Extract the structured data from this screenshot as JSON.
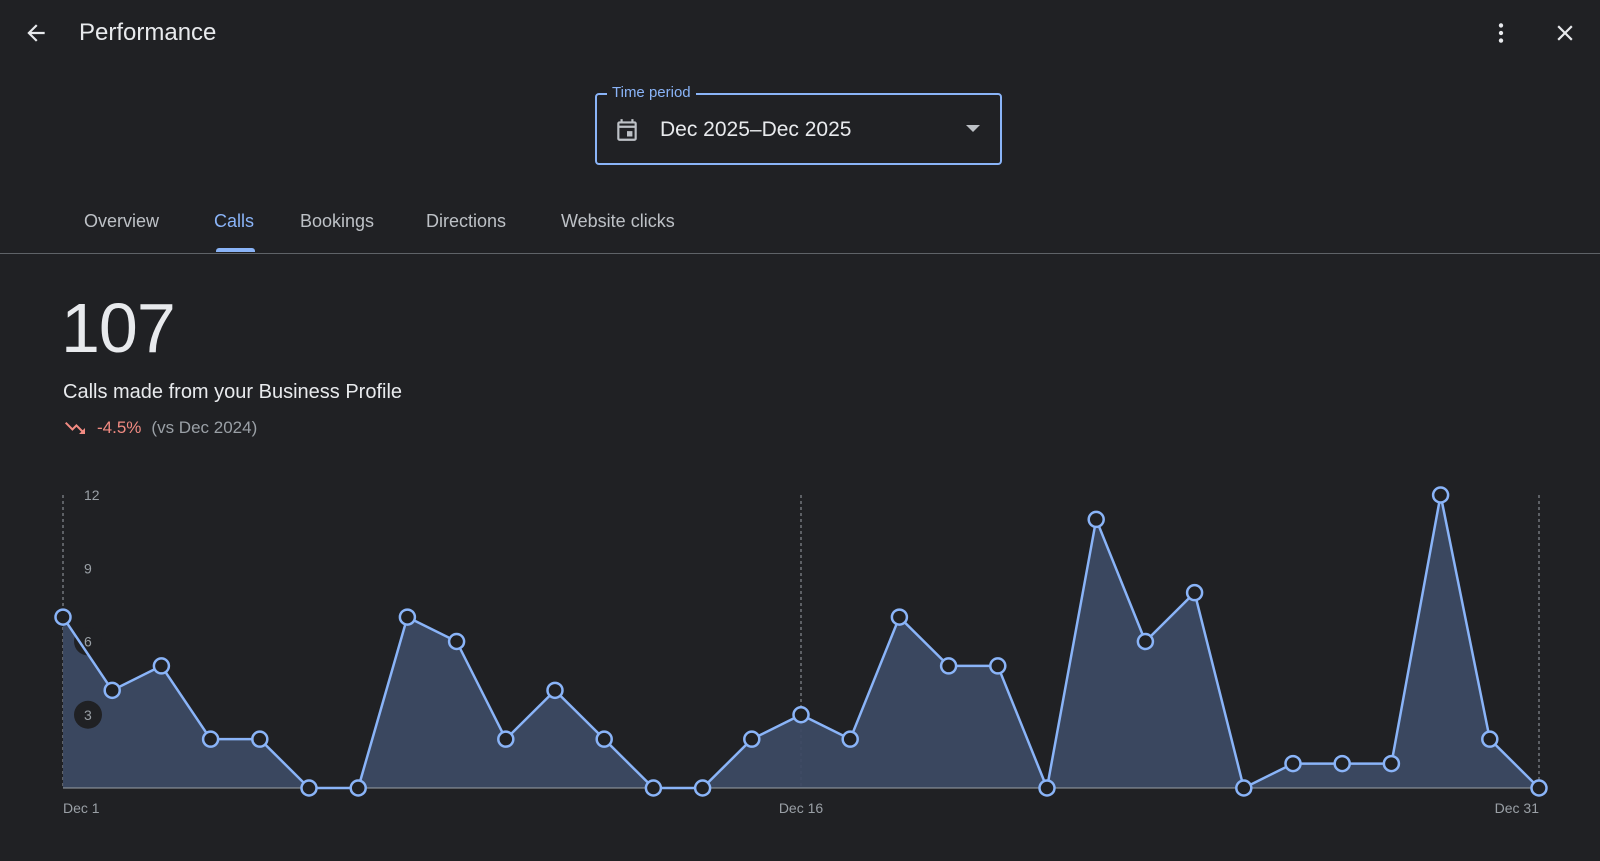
{
  "header": {
    "title": "Performance",
    "back_icon": "arrow-back-icon",
    "more_icon": "more-vert-icon",
    "close_icon": "close-icon"
  },
  "time_period": {
    "label": "Time period",
    "value": "Dec 2025–Dec 2025",
    "icon": "calendar-icon"
  },
  "tabs": [
    {
      "label": "Overview",
      "active": false
    },
    {
      "label": "Calls",
      "active": true
    },
    {
      "label": "Bookings",
      "active": false
    },
    {
      "label": "Directions",
      "active": false
    },
    {
      "label": "Website clicks",
      "active": false
    }
  ],
  "metric": {
    "value": "107",
    "description": "Calls made from your Business Profile",
    "change": "-4.5%",
    "comparison": "(vs Dec 2024)",
    "trend_icon": "trending-down-icon"
  },
  "colors": {
    "accent": "#8ab4f8",
    "negative": "#f28b82",
    "background": "#202124",
    "area_fill": "#3c4a63"
  },
  "chart_data": {
    "type": "area",
    "x": [
      "Dec 1",
      "Dec 2",
      "Dec 3",
      "Dec 4",
      "Dec 5",
      "Dec 6",
      "Dec 7",
      "Dec 8",
      "Dec 9",
      "Dec 10",
      "Dec 11",
      "Dec 12",
      "Dec 13",
      "Dec 14",
      "Dec 15",
      "Dec 16",
      "Dec 17",
      "Dec 18",
      "Dec 19",
      "Dec 20",
      "Dec 21",
      "Dec 22",
      "Dec 23",
      "Dec 24",
      "Dec 25",
      "Dec 26",
      "Dec 27",
      "Dec 28",
      "Dec 29",
      "Dec 30",
      "Dec 31"
    ],
    "values": [
      7,
      4,
      5,
      2,
      2,
      0,
      0,
      7,
      6,
      2,
      4,
      2,
      0,
      0,
      2,
      3,
      2,
      7,
      5,
      5,
      0,
      11,
      6,
      8,
      0,
      1,
      1,
      1,
      12,
      2,
      0
    ],
    "x_tick_labels": [
      "Dec 1",
      "Dec 16",
      "Dec 31"
    ],
    "y_ticks": [
      3,
      6,
      9,
      12
    ],
    "ylim": [
      0,
      12
    ]
  }
}
